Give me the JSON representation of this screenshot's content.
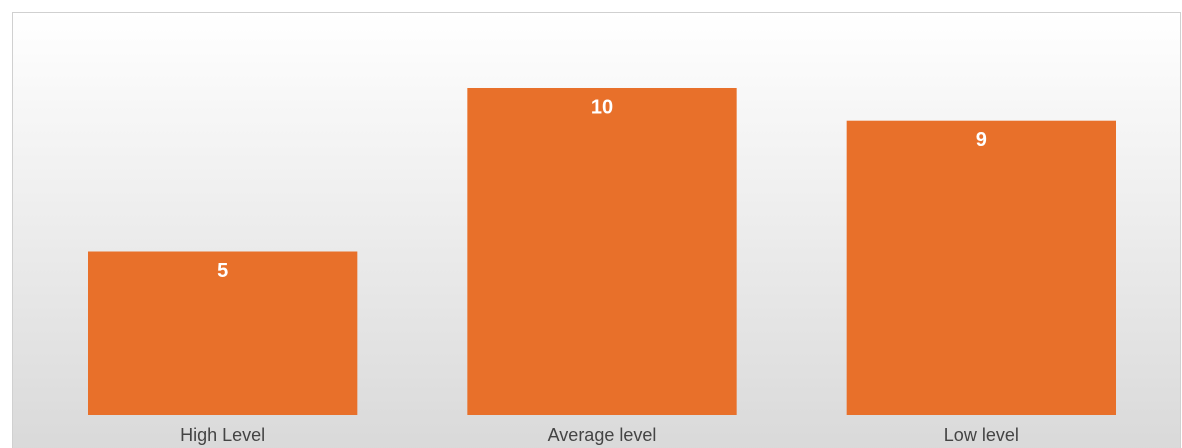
{
  "chart_data": {
    "type": "bar",
    "categories": [
      "High Level",
      "Average level",
      "Low level"
    ],
    "values": [
      5,
      10,
      9
    ],
    "color": "#e8702a"
  }
}
